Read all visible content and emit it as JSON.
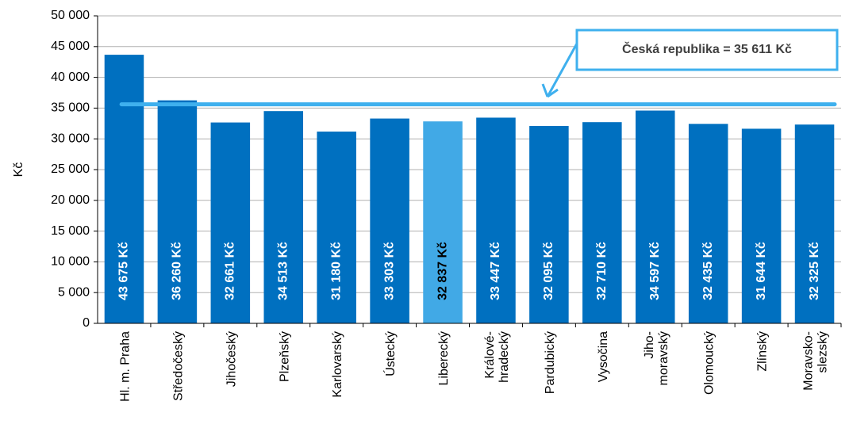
{
  "chart_data": {
    "type": "bar",
    "categories": [
      [
        "Hl. m. Praha"
      ],
      [
        "Středočeský"
      ],
      [
        "Jihočeský"
      ],
      [
        "Plzeňský"
      ],
      [
        "Karlovarský"
      ],
      [
        "Ústecký"
      ],
      [
        "Liberecký"
      ],
      [
        "Králové-",
        "hradecký"
      ],
      [
        "Pardubický"
      ],
      [
        "Vysočina"
      ],
      [
        "Jiho-",
        "moravský"
      ],
      [
        "Olomoucký"
      ],
      [
        "Zlínský"
      ],
      [
        "Moravsko-",
        "slezský"
      ]
    ],
    "values": [
      43675,
      36260,
      32661,
      34513,
      31180,
      33303,
      32837,
      33447,
      32095,
      32710,
      34597,
      32435,
      31644,
      32325
    ],
    "value_labels": [
      "43 675 Kč",
      "36 260 Kč",
      "32 661 Kč",
      "34 513 Kč",
      "31 180 Kč",
      "33 303 Kč",
      "32 837 Kč",
      "33 447 Kč",
      "32 095 Kč",
      "32 710 Kč",
      "34 597 Kč",
      "32 435 Kč",
      "31 644 Kč",
      "32 325 Kč"
    ],
    "colors": [
      "#0070c0",
      "#0070c0",
      "#0070c0",
      "#0070c0",
      "#0070c0",
      "#0070c0",
      "#41a9e6",
      "#0070c0",
      "#0070c0",
      "#0070c0",
      "#0070c0",
      "#0070c0",
      "#0070c0",
      "#0070c0"
    ],
    "label_colors": [
      "#ffffff",
      "#ffffff",
      "#ffffff",
      "#ffffff",
      "#ffffff",
      "#ffffff",
      "#000000",
      "#ffffff",
      "#ffffff",
      "#ffffff",
      "#ffffff",
      "#ffffff",
      "#ffffff",
      "#ffffff"
    ],
    "y_label": "Kč",
    "ylim": [
      0,
      50000
    ],
    "yticks": [
      0,
      {
        "value": 5000,
        "label": "5 000"
      },
      {
        "value": 10000,
        "label": "10 000"
      },
      {
        "value": 15000,
        "label": "15 000"
      },
      {
        "value": 20000,
        "label": "20 000"
      },
      {
        "value": 25000,
        "label": "25 000"
      },
      {
        "value": 30000,
        "label": "30 000"
      },
      {
        "value": 35000,
        "label": "35 000"
      },
      {
        "value": 40000,
        "label": "40 000"
      },
      {
        "value": 45000,
        "label": "45 000"
      },
      {
        "value": 50000,
        "label": "50 000"
      }
    ],
    "grid": true,
    "reference_line": {
      "value": 35611,
      "label": "Česká republika = 35 611 Kč",
      "color": "#3fb0ee"
    }
  }
}
